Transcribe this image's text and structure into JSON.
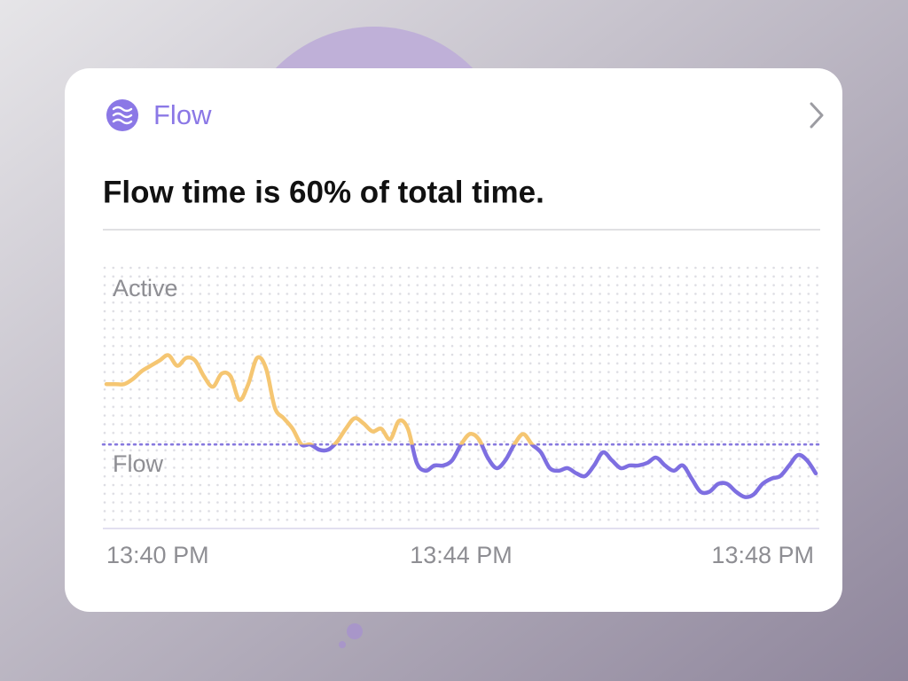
{
  "header": {
    "title": "Flow"
  },
  "headline": "Flow time is 60% of total time.",
  "chart_data": {
    "type": "line",
    "annotations": [
      "Active",
      "Flow"
    ],
    "x_labels": [
      "13:40 PM",
      "13:44 PM",
      "13:48 PM"
    ],
    "values": [
      55,
      55,
      55,
      57,
      60,
      62,
      64,
      66,
      62,
      65,
      64,
      58,
      54,
      59,
      58,
      49,
      55,
      65,
      61,
      46,
      42,
      38,
      32,
      32,
      30,
      30,
      33,
      38,
      42,
      40,
      37,
      38,
      34,
      41,
      38,
      25,
      22,
      24,
      24,
      26,
      32,
      36,
      34,
      27,
      23,
      26,
      32,
      36,
      32,
      29,
      23,
      22,
      23,
      21,
      20,
      24,
      29,
      26,
      23,
      24,
      24,
      25,
      27,
      24,
      22,
      24,
      19,
      14,
      14,
      17,
      17,
      14,
      12,
      13,
      17,
      19,
      20,
      24,
      28,
      26,
      21
    ],
    "ylim": [
      0,
      100
    ],
    "threshold": 32,
    "colors": {
      "above": "#f5c672",
      "below": "#7e6fe1"
    },
    "grid": true
  }
}
